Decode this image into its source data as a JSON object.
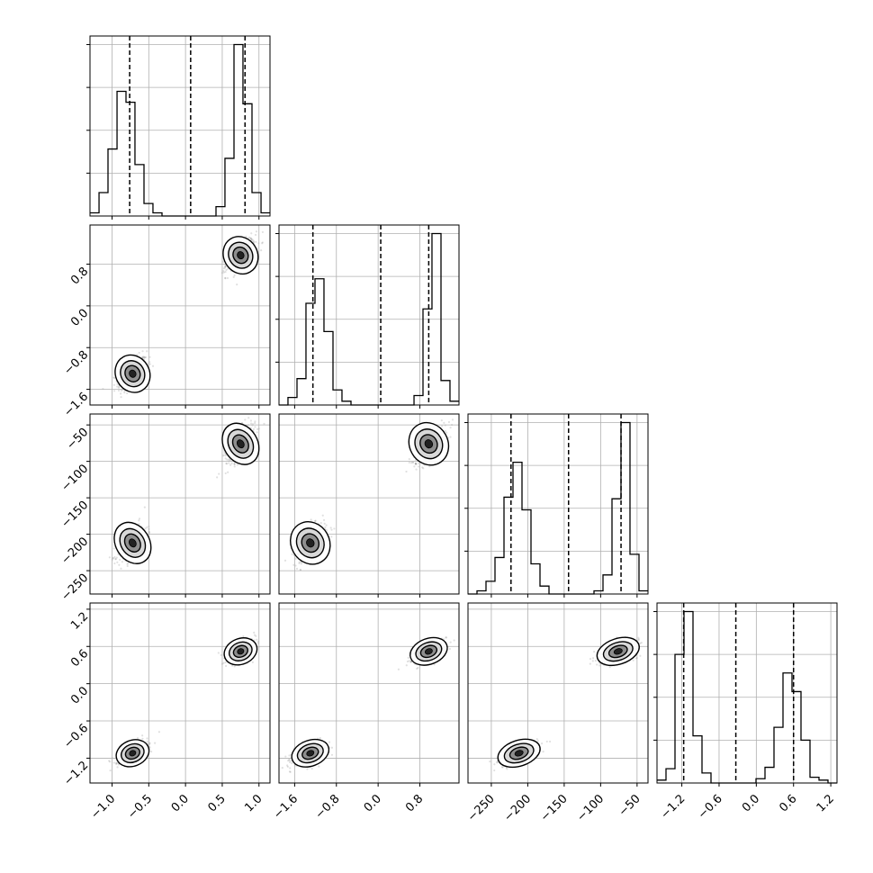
{
  "chart_data": {
    "type": "corner",
    "title": "",
    "axes": [
      {
        "name": "p0",
        "label": "",
        "range": [
          -1.3,
          1.15
        ],
        "ticks": [
          -1.0,
          -0.5,
          0.0,
          0.5,
          1.0
        ],
        "tick_labels": [
          "−1.0",
          "−0.5",
          "0.0",
          "0.5",
          "1.0"
        ],
        "quantile_lines": [
          -0.76,
          0.07,
          0.81
        ],
        "hist_edges": [
          -1.3,
          -1.177,
          -1.055,
          -0.932,
          -0.81,
          -0.688,
          -0.565,
          -0.443,
          -0.32,
          -0.198,
          -0.075,
          0.048,
          0.17,
          0.292,
          0.415,
          0.537,
          0.66,
          0.782,
          0.905,
          1.028,
          1.15
        ],
        "hist_counts": [
          2,
          15,
          43,
          80,
          73,
          33,
          8,
          2,
          0,
          0,
          0,
          0,
          0,
          0,
          6,
          37,
          110,
          72,
          15,
          2
        ]
      },
      {
        "name": "p1",
        "label": "",
        "range": [
          -1.9,
          1.55
        ],
        "ticks": [
          -1.6,
          -0.8,
          0.0,
          0.8
        ],
        "tick_labels": [
          "−1.6",
          "−0.8",
          "0.0",
          "0.8"
        ],
        "quantile_lines": [
          -1.25,
          0.05,
          0.97
        ],
        "hist_edges": [
          -1.9,
          -1.728,
          -1.555,
          -1.383,
          -1.21,
          -1.038,
          -0.865,
          -0.693,
          -0.52,
          -0.348,
          -0.175,
          -0.003,
          0.17,
          0.342,
          0.515,
          0.688,
          0.86,
          1.032,
          1.205,
          1.377,
          1.55
        ],
        "hist_counts": [
          0,
          4,
          14,
          54,
          67,
          39,
          8,
          2,
          0,
          0,
          0,
          0,
          0,
          0,
          0,
          5,
          51,
          91,
          13,
          2
        ]
      },
      {
        "name": "p2",
        "label": "",
        "range": [
          -282,
          -35
        ],
        "ticks": [
          -250,
          -200,
          -150,
          -100,
          -50
        ],
        "tick_labels": [
          "−250",
          "−200",
          "−150",
          "−100",
          "−50"
        ],
        "quantile_lines": [
          -223,
          -144,
          -72
        ],
        "hist_edges": [
          -282,
          -269.65,
          -257.3,
          -244.95,
          -232.6,
          -220.25,
          -207.9,
          -195.55,
          -183.2,
          -170.85,
          -158.5,
          -146.15,
          -133.8,
          -121.45,
          -109.1,
          -96.75,
          -84.4,
          -72.05,
          -59.7,
          -47.35,
          -35
        ],
        "hist_counts": [
          0,
          2,
          8,
          23,
          61,
          83,
          53,
          19,
          5,
          0,
          0,
          0,
          0,
          0,
          2,
          12,
          60,
          108,
          25,
          2
        ]
      },
      {
        "name": "p3",
        "label": "",
        "range": [
          -1.6,
          1.3
        ],
        "ticks": [
          -1.2,
          -0.6,
          0.0,
          0.6,
          1.2
        ],
        "tick_labels": [
          "−1.2",
          "−0.6",
          "0.0",
          "0.6",
          "1.2"
        ],
        "quantile_lines": [
          -1.17,
          -0.33,
          0.6
        ],
        "hist_edges": [
          -1.6,
          -1.455,
          -1.31,
          -1.165,
          -1.02,
          -0.875,
          -0.73,
          -0.585,
          -0.44,
          -0.295,
          -0.15,
          -0.005,
          0.14,
          0.285,
          0.43,
          0.575,
          0.72,
          0.865,
          1.01,
          1.155,
          1.3
        ],
        "hist_counts": [
          2,
          10,
          90,
          120,
          33,
          7,
          0,
          0,
          0,
          0,
          0,
          3,
          11,
          39,
          77,
          64,
          30,
          4,
          2,
          0
        ]
      }
    ],
    "modes": [
      {
        "p0": -0.72,
        "p1": -1.3,
        "p2": -212,
        "p3": -1.12
      },
      {
        "p0": 0.75,
        "p1": 0.97,
        "p2": -76,
        "p3": 0.52
      }
    ],
    "grid": true,
    "legend": "none"
  }
}
